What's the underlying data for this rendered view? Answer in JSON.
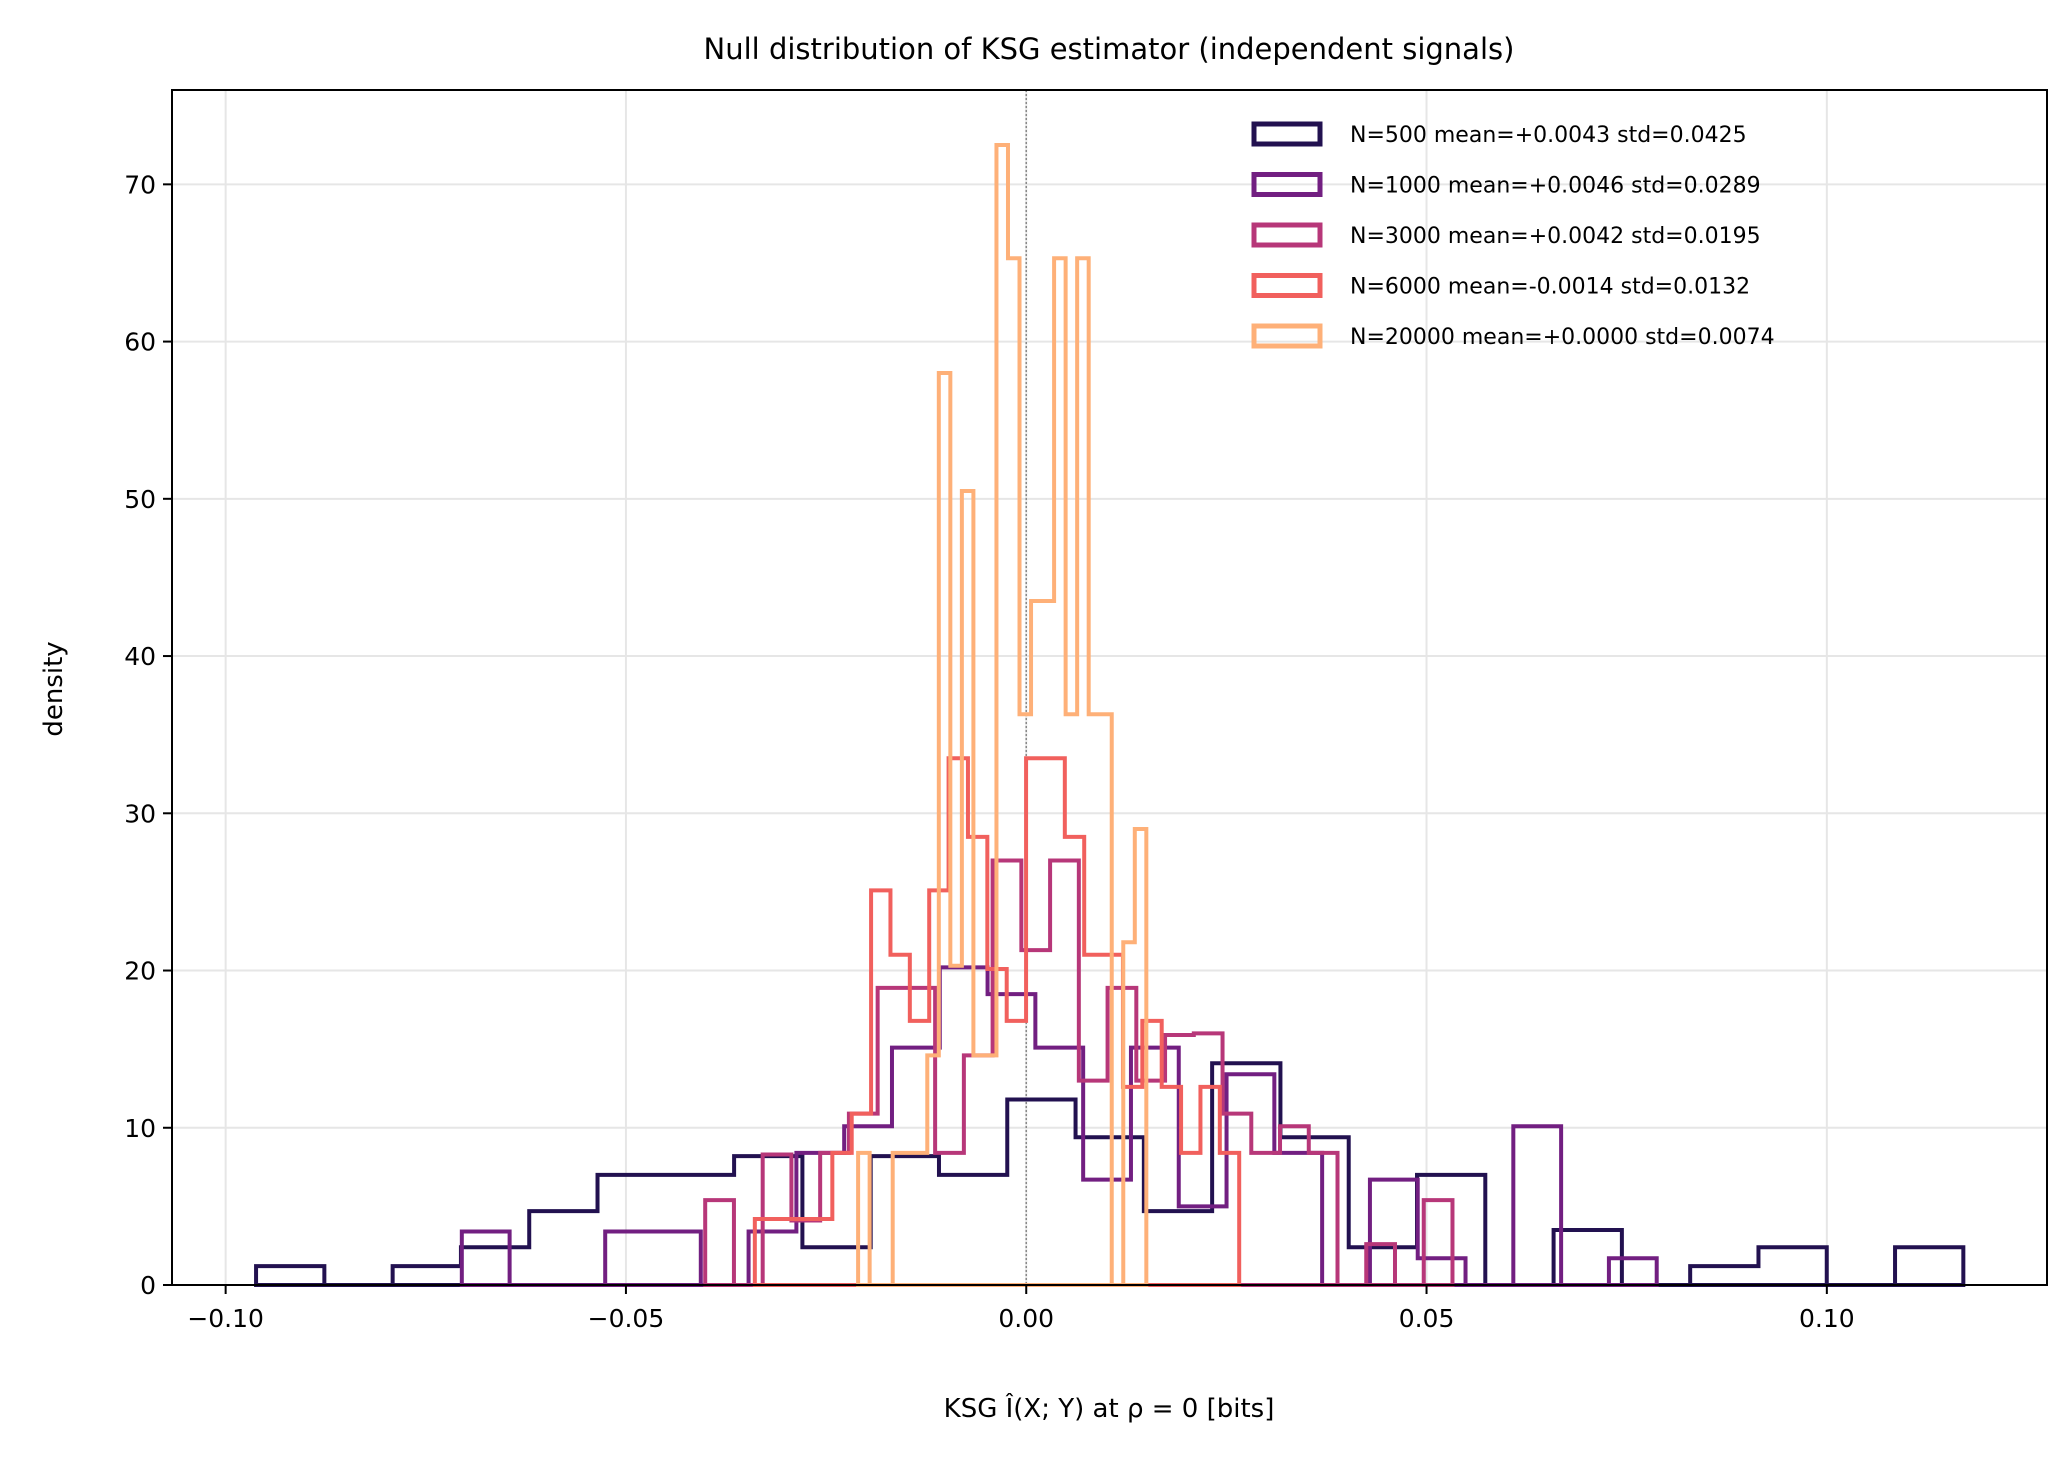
{
  "chart_data": {
    "type": "histogram-step",
    "title": "Null distribution of KSG estimator (independent signals)",
    "xlabel": "KSG Î(X; Y) at ρ = 0  [bits]",
    "ylabel": "density",
    "xlim": [
      -0.1067,
      0.1275
    ],
    "ylim": [
      0,
      76
    ],
    "xticks": [
      -0.1,
      -0.05,
      0.0,
      0.05,
      0.1
    ],
    "xtick_labels": [
      "−0.10",
      "−0.05",
      "0.00",
      "0.05",
      "0.10"
    ],
    "yticks": [
      0,
      10,
      20,
      30,
      40,
      50,
      60,
      70
    ],
    "ytick_labels": [
      "0",
      "10",
      "20",
      "30",
      "40",
      "50",
      "60",
      "70"
    ],
    "grid": true,
    "reference_line_x": 0,
    "legend_position": "top-right",
    "series": [
      {
        "name": "N=500  mean=+0.0043  std=0.0425",
        "color": "#221150",
        "bin_start": -0.0962,
        "bin_width": 0.00853,
        "values": [
          1.2,
          0,
          1.2,
          2.4,
          4.7,
          7.0,
          7.0,
          8.2,
          2.4,
          8.2,
          7.0,
          11.8,
          9.4,
          4.7,
          14.1,
          9.4,
          2.4,
          7.0,
          0,
          3.5,
          0,
          1.2,
          2.4,
          0,
          2.4
        ]
      },
      {
        "name": "N=1000  mean=+0.0046  std=0.0289",
        "color": "#721f81",
        "bin_start": -0.0705,
        "bin_width": 0.00597,
        "values": [
          3.4,
          0,
          0,
          3.4,
          3.4,
          0,
          3.4,
          8.4,
          10.1,
          15.1,
          20.2,
          18.5,
          15.1,
          6.7,
          15.1,
          5.0,
          13.4,
          8.4,
          0,
          6.7,
          1.7,
          0,
          10.1,
          0,
          1.7
        ]
      },
      {
        "name": "N=3000  mean=+0.0042  std=0.0195",
        "color": "#b73779",
        "bin_start": -0.0401,
        "bin_width": 0.00359,
        "values": [
          5.4,
          0,
          8.3,
          4.1,
          8.4,
          10.9,
          18.9,
          18.9,
          8.4,
          14.6,
          27.0,
          21.3,
          27.0,
          13.0,
          18.9,
          13.0,
          15.9,
          16.0,
          10.9,
          8.4,
          10.1,
          8.4,
          0,
          2.6,
          0,
          5.4
        ]
      },
      {
        "name": "N=6000  mean=-0.0014  std=0.0132",
        "color": "#f1605d",
        "bin_start": -0.0339,
        "bin_width": 0.00242,
        "values": [
          4.2,
          4.2,
          4.2,
          4.2,
          8.4,
          10.9,
          25.1,
          21.0,
          16.8,
          25.1,
          33.5,
          28.5,
          20.1,
          16.8,
          33.5,
          33.5,
          28.5,
          21.0,
          21.0,
          12.6,
          16.8,
          12.6,
          8.4,
          12.6,
          8.4
        ]
      },
      {
        "name": "N=20000  mean=+0.0000  std=0.0074",
        "color": "#feb078",
        "bin_start": -0.021,
        "bin_width": 0.00144,
        "values": [
          8.4,
          0,
          0,
          8.4,
          8.4,
          8.4,
          14.6,
          58.0,
          20.3,
          50.5,
          14.6,
          14.6,
          72.5,
          65.3,
          36.3,
          43.5,
          43.5,
          65.3,
          36.3,
          65.3,
          36.3,
          36.3,
          0,
          21.8,
          29.0
        ]
      }
    ]
  }
}
